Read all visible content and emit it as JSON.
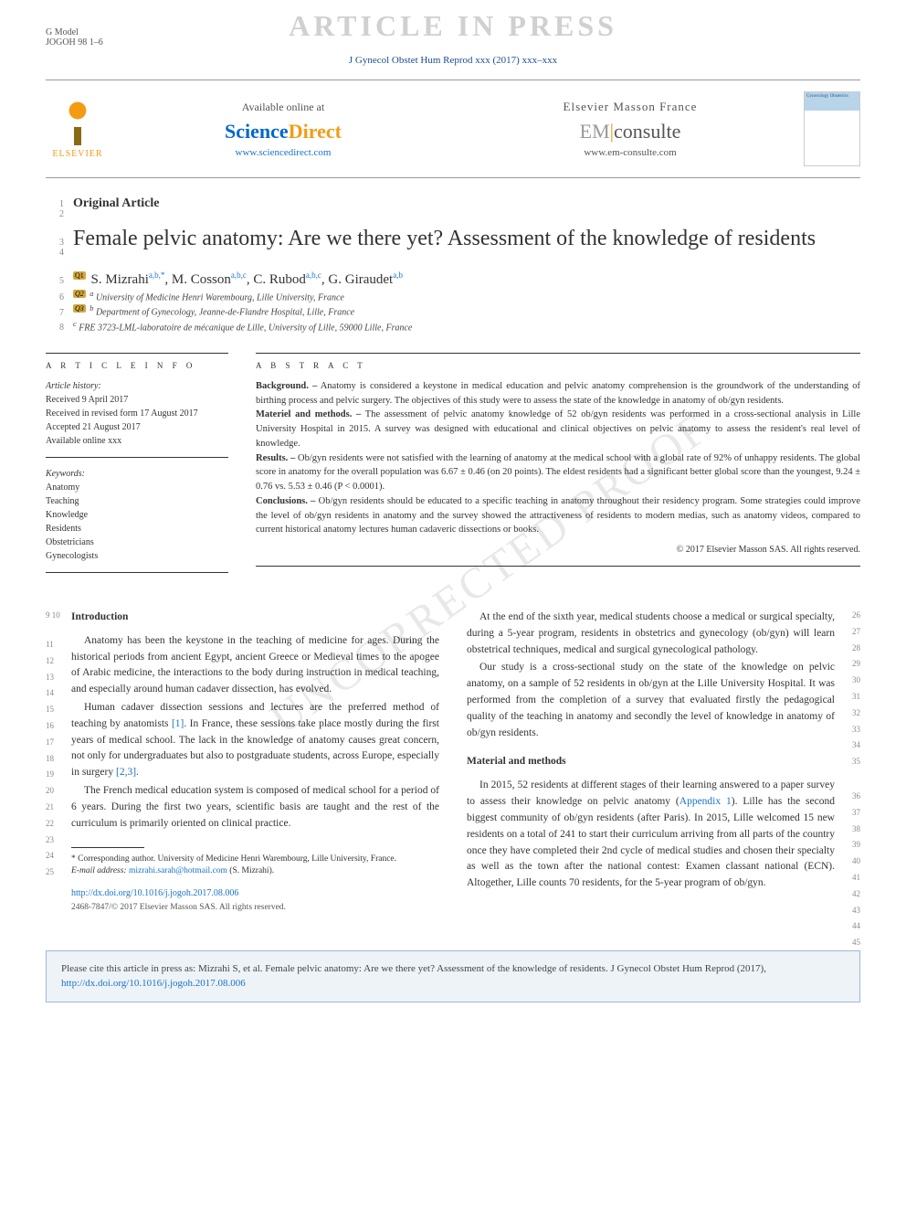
{
  "gmodel_label": "G Model",
  "gmodel_id": "JOGOH 98 1–6",
  "watermark_banner": "ARTICLE IN PRESS",
  "diag_watermark": "UNCORRECTED PROOF",
  "journal_ref": "J Gynecol Obstet Hum Reprod xxx (2017) xxx–xxx",
  "elsevier": "ELSEVIER",
  "sd": {
    "available": "Available online at",
    "science": "Science",
    "direct": "Direct",
    "url": "www.sciencedirect.com"
  },
  "em": {
    "france": "Elsevier Masson France",
    "em": "EM",
    "consulte": "consulte",
    "url": "www.em-consulte.com"
  },
  "cover_text": "Gynecology Obstetrics",
  "line_nums": {
    "article_type": "1\n2",
    "title1": "3",
    "title2": "4",
    "authors": "5",
    "affil1": "6",
    "affil2": "7",
    "affil3": "8",
    "intro_start": "9\n10"
  },
  "article_type": "Original Article",
  "title": "Female pelvic anatomy: Are we there yet? Assessment of the knowledge of residents",
  "q_badges": {
    "q1": "Q1",
    "q2": "Q2",
    "q3": "Q3"
  },
  "authors": {
    "a1": {
      "name": "S. Mizrahi",
      "sup": "a,b,*"
    },
    "a2": {
      "name": "M. Cosson",
      "sup": "a,b,c"
    },
    "a3": {
      "name": "C. Rubod",
      "sup": "a,b,c"
    },
    "a4": {
      "name": "G. Giraudet",
      "sup": "a,b"
    }
  },
  "affils": {
    "a": "University of Medicine Henri Warembourg, Lille University, France",
    "b": "Department of Gynecology, Jeanne-de-Flandre Hospital, Lille, France",
    "c": "FRE 3723-LML-laboratoire de mécanique de Lille, University of Lille, 59000 Lille, France"
  },
  "info_head": "A R T I C L E   I N F O",
  "abstract_head": "A B S T R A C T",
  "history": {
    "label": "Article history:",
    "received": "Received 9 April 2017",
    "revised": "Received in revised form 17 August 2017",
    "accepted": "Accepted 21 August 2017",
    "online": "Available online xxx"
  },
  "keywords": {
    "label": "Keywords:",
    "k1": "Anatomy",
    "k2": "Teaching",
    "k3": "Knowledge",
    "k4": "Residents",
    "k5": "Obstetricians",
    "k6": "Gynecologists"
  },
  "abstract": {
    "bg_label": "Background. –",
    "bg": "Anatomy is considered a keystone in medical education and pelvic anatomy comprehension is the groundwork of the understanding of birthing process and pelvic surgery. The objectives of this study were to assess the state of the knowledge in anatomy of ob/gyn residents.",
    "mm_label": "Materiel and methods. –",
    "mm": "The assessment of pelvic anatomy knowledge of 52 ob/gyn residents was performed in a cross-sectional analysis in Lille University Hospital in 2015. A survey was designed with educational and clinical objectives on pelvic anatomy to assess the resident's real level of knowledge.",
    "res_label": "Results. –",
    "res": "Ob/gyn residents were not satisfied with the learning of anatomy at the medical school with a global rate of 92% of unhappy residents. The global score in anatomy for the overall population was 6.67 ± 0.46 (on 20 points). The eldest residents had a significant better global score than the youngest, 9.24 ± 0.76 vs. 5.53 ± 0.46 (P < 0.0001).",
    "con_label": "Conclusions. –",
    "con": "Ob/gyn residents should be educated to a specific teaching in anatomy throughout their residency program. Some strategies could improve the level of ob/gyn residents in anatomy and the survey showed the attractiveness of residents to modern medias, such as anatomy videos, compared to current historical anatomy lectures human cadaveric dissections or books.",
    "copyright": "© 2017 Elsevier Masson SAS. All rights reserved."
  },
  "body": {
    "intro_h": "Introduction",
    "p1": "Anatomy has been the keystone in the teaching of medicine for ages. During the historical periods from ancient Egypt, ancient Greece or Medieval times to the apogee of Arabic medicine, the interactions to the body during instruction in medical teaching, and especially around human cadaver dissection, has evolved.",
    "p2a": "Human cadaver dissection sessions and lectures are the preferred method of teaching by anatomists ",
    "p2ref1": "[1]",
    "p2b": ". In France, these sessions take place mostly during the first years of medical school. The lack in the knowledge of anatomy causes great concern, not only for undergraduates but also to postgraduate students, across Europe, especially in surgery ",
    "p2ref2": "[2,3]",
    "p2c": ".",
    "p3": "The French medical education system is composed of medical school for a period of 6 years. During the first two years, scientific basis are taught and the rest of the curriculum is primarily oriented on clinical practice.",
    "p4": "At the end of the sixth year, medical students choose a medical or surgical specialty, during a 5-year program, residents in obstetrics and gynecology (ob/gyn) will learn obstetrical techniques, medical and surgical gynecological pathology.",
    "p5": "Our study is a cross-sectional study on the state of the knowledge on pelvic anatomy, on a sample of 52 residents in ob/gyn at the Lille University Hospital. It was performed from the completion of a survey that evaluated firstly the pedagogical quality of the teaching in anatomy and secondly the level of knowledge in anatomy of ob/gyn residents.",
    "mm_h": "Material and methods",
    "p6a": "In 2015, 52 residents at different stages of their learning answered to a paper survey to assess their knowledge on pelvic anatomy (",
    "p6ref": "Appendix 1",
    "p6b": "). Lille has the second biggest community of ob/gyn residents (after Paris). In 2015, Lille welcomed 15 new residents on a total of 241 to start their curriculum arriving from all parts of the country once they have completed their 2nd cycle of medical studies and chosen their specialty as well as the town after the national contest: Examen classant national (ECN). Altogether, Lille counts 70 residents, for the 5-year program of ob/gyn."
  },
  "left_lines": [
    "11",
    "12",
    "13",
    "14",
    "15",
    "16",
    "17",
    "18",
    "19",
    "20",
    "21",
    "22",
    "23",
    "24",
    "25"
  ],
  "right_lines": [
    "26",
    "27",
    "28",
    "29",
    "30",
    "31",
    "32",
    "33",
    "34",
    "35",
    "36",
    "37",
    "38",
    "39",
    "40",
    "41",
    "42",
    "43",
    "44",
    "45"
  ],
  "footnote": {
    "corr": "* Corresponding author. University of Medicine Henri Warembourg, Lille University, France.",
    "email_label": "E-mail address:",
    "email": "mizrahi.sarah@hotmail.com",
    "email_suffix": "(S. Mizrahi)."
  },
  "doi": "http://dx.doi.org/10.1016/j.jogoh.2017.08.006",
  "issn_line": "2468-7847/© 2017 Elsevier Masson SAS. All rights reserved.",
  "cite_box": {
    "text": "Please cite this article in press as: Mizrahi S, et al. Female pelvic anatomy: Are we there yet? Assessment of the knowledge of residents. J Gynecol Obstet Hum Reprod (2017), ",
    "url": "http://dx.doi.org/10.1016/j.jogoh.2017.08.006"
  },
  "colors": {
    "link": "#1a73c7",
    "elsevier_orange": "#f39c12",
    "sd_blue": "#0066cc",
    "watermark_gray": "#d0d0d0",
    "text": "#333333",
    "citebox_bg": "#eef3f8",
    "citebox_border": "#9fb8d4"
  }
}
